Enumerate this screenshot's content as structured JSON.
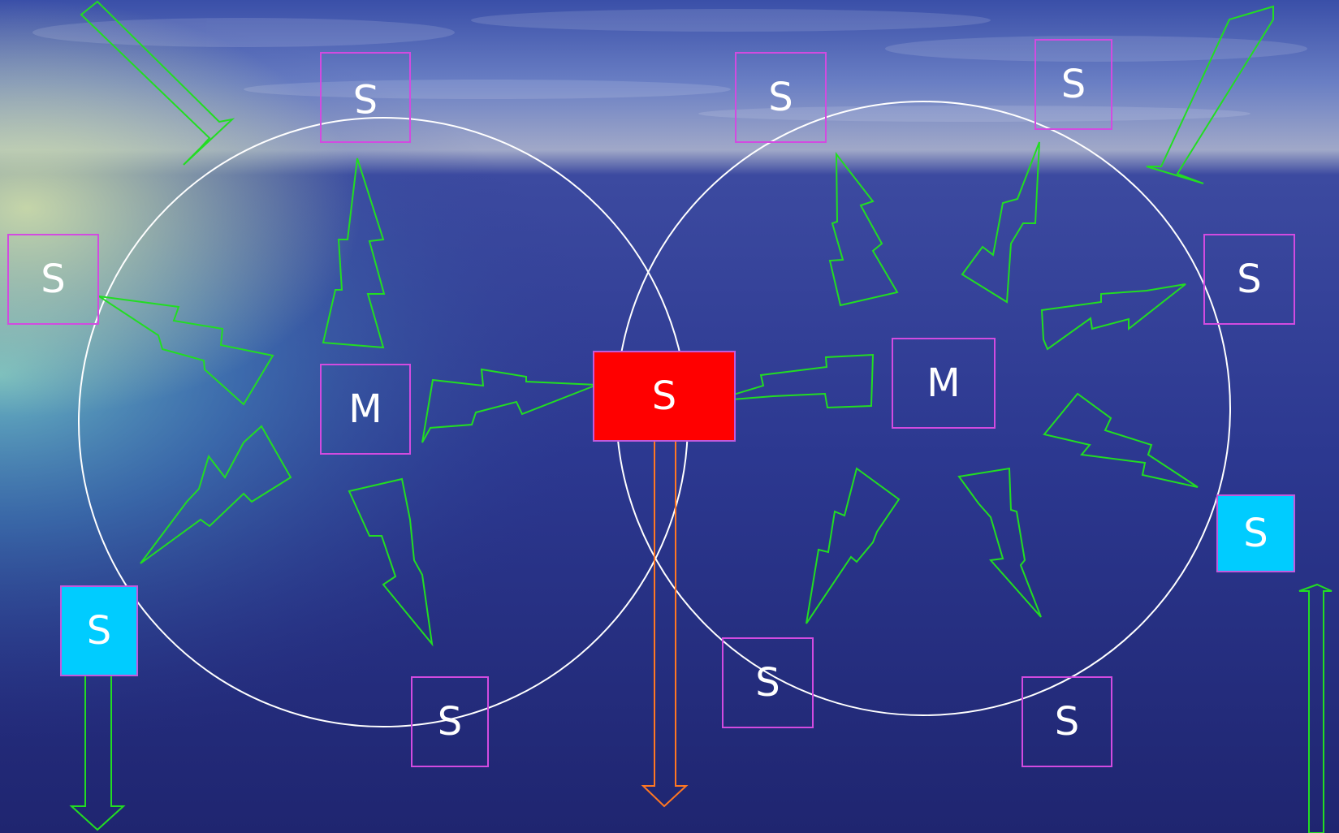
{
  "colors": {
    "node_border": "#d24be0",
    "bolt_stroke": "#22dd22",
    "ring_stroke": "#ffffff",
    "central_node": "#ff0000",
    "highlight_node": "#00ccff",
    "outflow_arrow": "#ff7722",
    "label_text": "#ffffff"
  },
  "nodes": {
    "top_left": "S",
    "left": "S",
    "master_left": "M",
    "bottom_left_cyan": "S",
    "bottom_left_center": "S",
    "center_shared": "S",
    "top_right_a": "S",
    "top_right_b": "S",
    "right_upper": "S",
    "master_right": "M",
    "right_lower_cyan": "S",
    "bottom_right_a": "S",
    "bottom_right_b": "S"
  }
}
